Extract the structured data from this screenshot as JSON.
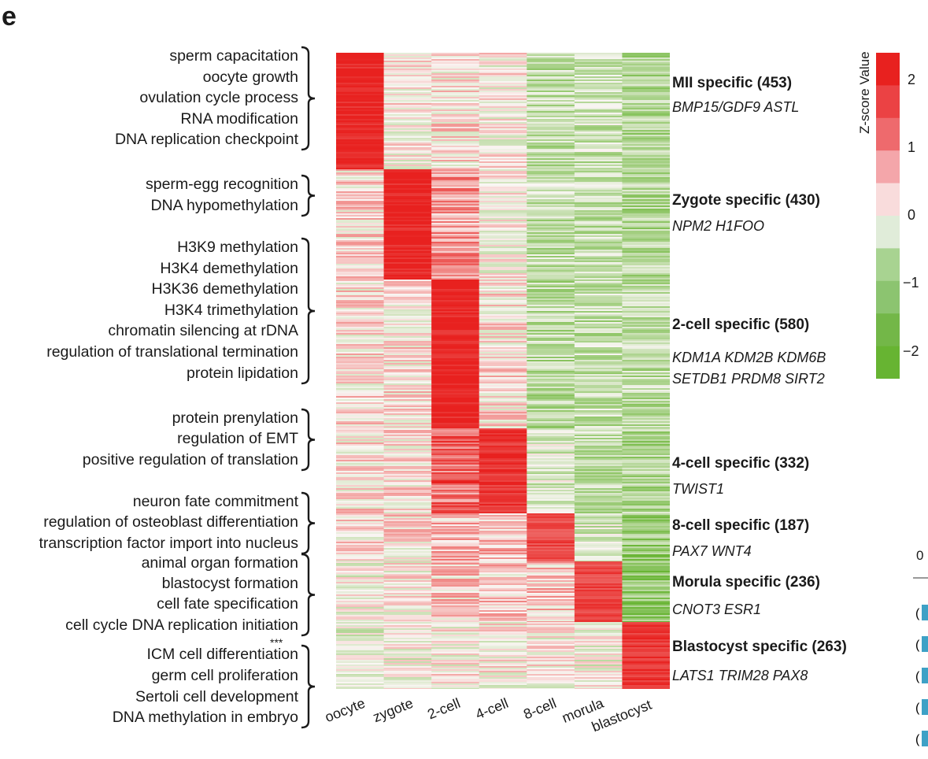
{
  "panel_label": "e",
  "go_terms": [
    {
      "group": 1,
      "text": "sperm capacitation"
    },
    {
      "group": 1,
      "text": "oocyte growth"
    },
    {
      "group": 1,
      "text": "ovulation cycle process"
    },
    {
      "group": 1,
      "text": "RNA modification"
    },
    {
      "group": 1,
      "text": "DNA replication checkpoint"
    },
    {
      "group": 2,
      "text": "sperm-egg recognition"
    },
    {
      "group": 2,
      "text": "DNA hypomethylation"
    },
    {
      "group": 3,
      "text": "H3K9 methylation"
    },
    {
      "group": 3,
      "text": "H3K4 demethylation"
    },
    {
      "group": 3,
      "text": "H3K36 demethylation"
    },
    {
      "group": 3,
      "text": "H3K4 trimethylation"
    },
    {
      "group": 3,
      "text": "chromatin silencing at rDNA"
    },
    {
      "group": 3,
      "text": "regulation of translational termination"
    },
    {
      "group": 3,
      "text": "protein lipidation"
    },
    {
      "group": 4,
      "text": "protein prenylation"
    },
    {
      "group": 4,
      "text": "regulation of EMT"
    },
    {
      "group": 4,
      "text": "positive regulation of translation"
    },
    {
      "group": 5,
      "text": "neuron fate commitment"
    },
    {
      "group": 5,
      "text": "regulation of osteoblast differentiation"
    },
    {
      "group": 5,
      "text": "transcription factor import into nucleus"
    },
    {
      "group": 6,
      "text": "animal organ formation"
    },
    {
      "group": 6,
      "text": "blastocyst formation"
    },
    {
      "group": 6,
      "text": "cell fate specification"
    },
    {
      "group": 6,
      "text": "cell cycle DNA replication initiation"
    },
    {
      "group": 7,
      "text": "ICM cell differentiation"
    },
    {
      "group": 7,
      "text": "germ cell proliferation"
    },
    {
      "group": 7,
      "text": "Sertoli cell development"
    },
    {
      "group": 7,
      "text": "DNA methylation in embryo"
    }
  ],
  "significance_mark": "***",
  "chart_data": {
    "type": "heatmap",
    "columns": [
      "oocyte",
      "zygote",
      "2-cell",
      "4-cell",
      "8-cell",
      "morula",
      "blastocyst"
    ],
    "clusters": [
      {
        "title": "MII specific (453)",
        "genes": "BMP15/GDF9 ASTL",
        "n": 453,
        "peak": "oocyte",
        "profile": [
          2.2,
          0.0,
          0.2,
          0.0,
          -0.8,
          -0.7,
          -1.1
        ]
      },
      {
        "title": "Zygote specific (430)",
        "genes": "NPM2 H1FOO",
        "n": 430,
        "peak": "zygote",
        "profile": [
          0.3,
          2.2,
          0.9,
          0.0,
          -0.8,
          -0.8,
          -1.0
        ]
      },
      {
        "title": "2-cell specific (580)",
        "genes_lines": [
          "KDM1A KDM2B KDM6B",
          "SETDB1 PRDM8 SIRT2"
        ],
        "n": 580,
        "peak": "2-cell",
        "profile": [
          0.2,
          0.2,
          2.2,
          0.2,
          -0.9,
          -0.8,
          -0.9
        ]
      },
      {
        "title": "4-cell specific (332)",
        "genes": "TWIST1",
        "n": 332,
        "peak": "4-cell",
        "profile": [
          0.2,
          0.2,
          1.4,
          2.0,
          -0.5,
          -0.8,
          -1.1
        ]
      },
      {
        "title": "8-cell specific (187)",
        "genes": "PAX7 WNT4",
        "n": 187,
        "peak": "8-cell",
        "profile": [
          0.1,
          0.2,
          0.6,
          0.6,
          1.8,
          -0.6,
          -1.4
        ]
      },
      {
        "title": "Morula specific (236)",
        "genes": "CNOT3 ESR1",
        "n": 236,
        "peak": "morula",
        "profile": [
          -0.2,
          0.0,
          0.4,
          0.4,
          0.4,
          1.8,
          -1.5
        ]
      },
      {
        "title": "Blastocyst specific (263)",
        "genes": "LATS1 TRIM28 PAX8",
        "n": 263,
        "peak": "blastocyst",
        "profile": [
          -0.4,
          -0.2,
          0.0,
          0.0,
          0.0,
          -0.2,
          2.0
        ]
      }
    ],
    "colorbar": {
      "title": "Z-score Value",
      "ticks": [
        "2",
        "1",
        "0",
        "−1",
        "−2"
      ],
      "tick_values": [
        2,
        1,
        0,
        -1,
        -2
      ],
      "range": [
        -2.4,
        2.4
      ],
      "colors": [
        "#e8211f",
        "#eb4244",
        "#ee6a6d",
        "#f4a6aa",
        "#f9dcdc",
        "#e0ecd9",
        "#a8d391",
        "#8cc470",
        "#73b748",
        "#67b432"
      ]
    }
  },
  "clipped_panel": {
    "axis_tick": "0",
    "row_marks": [
      "(",
      "(",
      "(",
      "(",
      "("
    ]
  }
}
